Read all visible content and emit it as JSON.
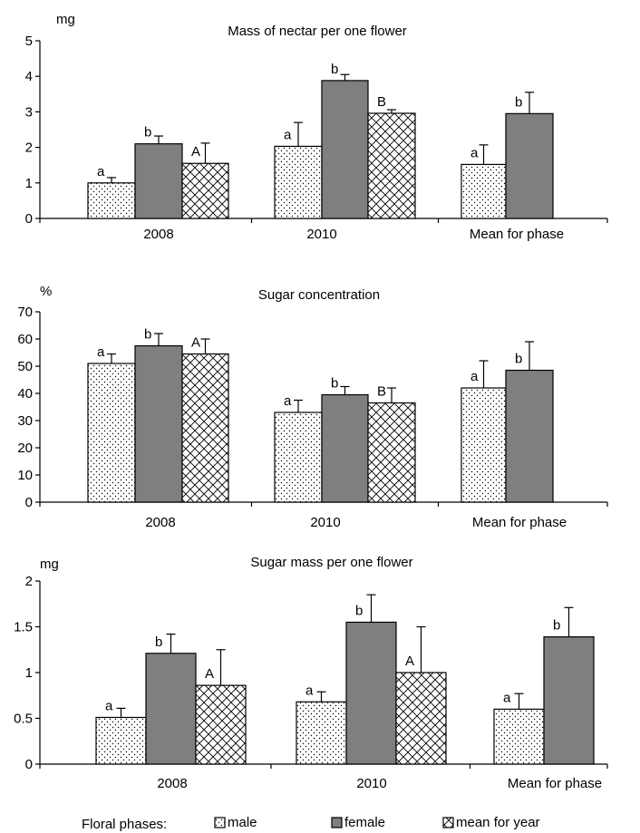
{
  "chart_data": [
    {
      "type": "bar",
      "title": "Mass of nectar per one flower",
      "ylabel": "mg",
      "ylim": [
        0,
        5
      ],
      "yticks": [
        "0",
        "1",
        "2",
        "3",
        "4",
        "5"
      ],
      "categories": [
        "2008",
        "2010",
        "Mean for phase"
      ],
      "series": [
        {
          "name": "male",
          "values": [
            1.0,
            2.03,
            1.52
          ],
          "errors": [
            0.15,
            0.67,
            0.55
          ],
          "letters": [
            "a",
            "a",
            "a"
          ]
        },
        {
          "name": "female",
          "values": [
            2.1,
            3.88,
            2.95
          ],
          "errors": [
            0.22,
            0.17,
            0.6
          ],
          "letters": [
            "b",
            "b",
            "b"
          ]
        },
        {
          "name": "mean for year",
          "values": [
            1.55,
            2.96,
            null
          ],
          "errors": [
            0.57,
            0.1,
            null
          ],
          "letters": [
            "A",
            "B",
            ""
          ]
        }
      ]
    },
    {
      "type": "bar",
      "title": "Sugar concentration",
      "ylabel": "%",
      "ylim": [
        0,
        70
      ],
      "yticks": [
        "0",
        "10",
        "20",
        "30",
        "40",
        "50",
        "60",
        "70"
      ],
      "categories": [
        "2008",
        "2010",
        "Mean for phase"
      ],
      "series": [
        {
          "name": "male",
          "values": [
            51,
            33,
            42
          ],
          "errors": [
            3.5,
            4.5,
            10
          ],
          "letters": [
            "a",
            "a",
            "a"
          ]
        },
        {
          "name": "female",
          "values": [
            57.5,
            39.5,
            48.5
          ],
          "errors": [
            4.5,
            3,
            10.5
          ],
          "letters": [
            "b",
            "b",
            "b"
          ]
        },
        {
          "name": "mean for year",
          "values": [
            54.5,
            36.5,
            null
          ],
          "errors": [
            5.5,
            5.5,
            null
          ],
          "letters": [
            "A",
            "B",
            ""
          ]
        }
      ]
    },
    {
      "type": "bar",
      "title": "Sugar mass per  one flower",
      "ylabel": "mg",
      "ylim": [
        0,
        2
      ],
      "yticks": [
        "0",
        "0.5",
        "1",
        "1.5",
        "2"
      ],
      "categories": [
        "2008",
        "2010",
        "Mean for phase"
      ],
      "series": [
        {
          "name": "male",
          "values": [
            0.51,
            0.68,
            0.6
          ],
          "errors": [
            0.1,
            0.11,
            0.17
          ],
          "letters": [
            "a",
            "a",
            "a"
          ]
        },
        {
          "name": "female",
          "values": [
            1.21,
            1.55,
            1.39
          ],
          "errors": [
            0.21,
            0.3,
            0.32
          ],
          "letters": [
            "b",
            "b",
            "b"
          ]
        },
        {
          "name": "mean for year",
          "values": [
            0.86,
            1.0,
            null
          ],
          "errors": [
            0.39,
            0.5,
            null
          ],
          "letters": [
            "A",
            "A",
            ""
          ]
        }
      ]
    }
  ],
  "legend": {
    "title": "Floral phases:",
    "items": [
      "male",
      "female",
      "mean for year"
    ]
  },
  "colors": {
    "male": "#ffffff",
    "female": "#7f7f7f",
    "mean_for_year": "#ffffff",
    "axis": "#000000"
  }
}
